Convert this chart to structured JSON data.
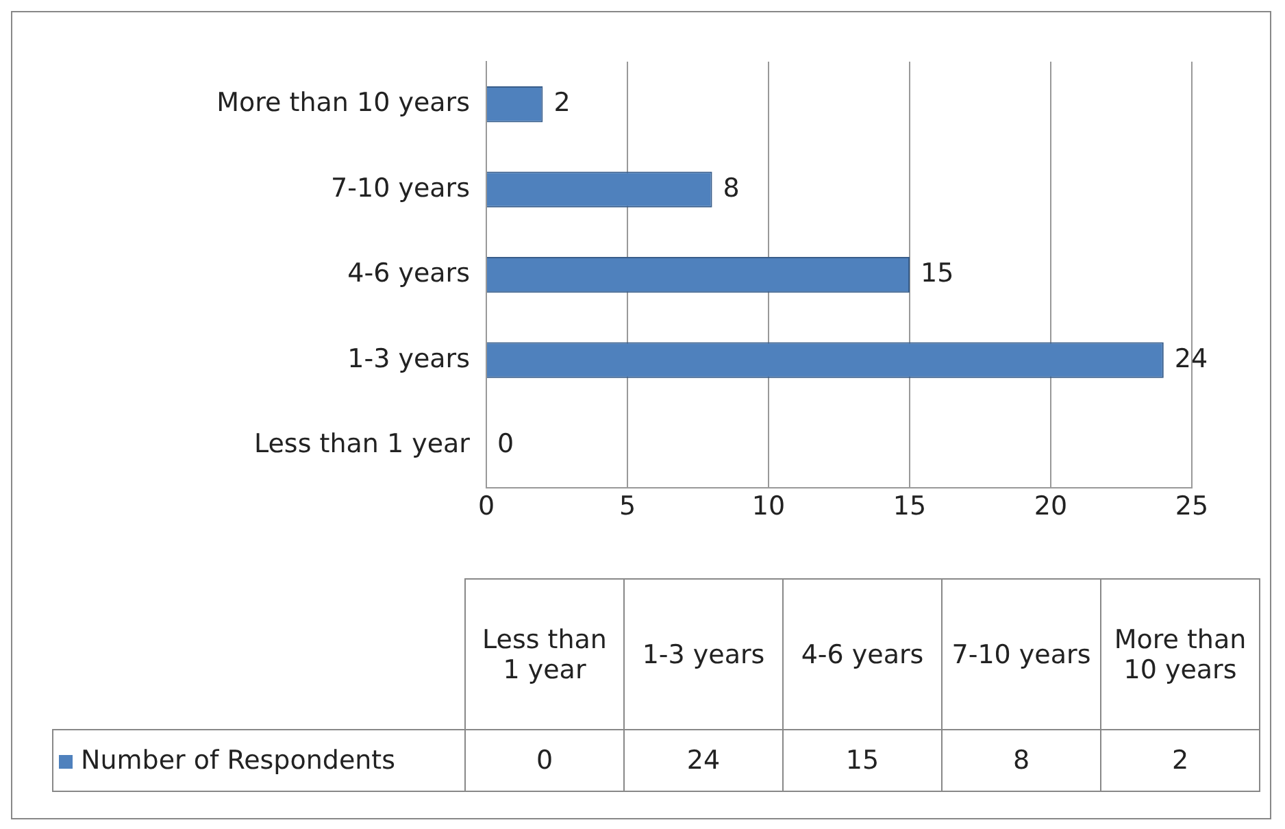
{
  "chart_data": [
    {
      "type": "bar",
      "orientation": "horizontal",
      "categories": [
        "More than 10 years",
        "7-10 years",
        "4-6 years",
        "1-3 years",
        "Less than 1 year"
      ],
      "series": [
        {
          "color": "#4f81bd",
          "values": [
            2,
            8,
            15,
            24,
            0
          ]
        }
      ],
      "xlim": [
        0,
        25
      ],
      "xticks": [
        0,
        5,
        10,
        15,
        20,
        25
      ],
      "grid": "x",
      "data_labels": true
    },
    {
      "type": "other",
      "categories": [
        "Less than 1 year",
        "1-3 years",
        "4-6 years",
        "7-10 years",
        "More than 10 years"
      ],
      "series": [
        {
          "name": "Number of Respondents",
          "color": "#4f81bd",
          "values": [
            0,
            24,
            15,
            8,
            2
          ]
        }
      ],
      "legend": "left",
      "data_labels": true
    }
  ]
}
